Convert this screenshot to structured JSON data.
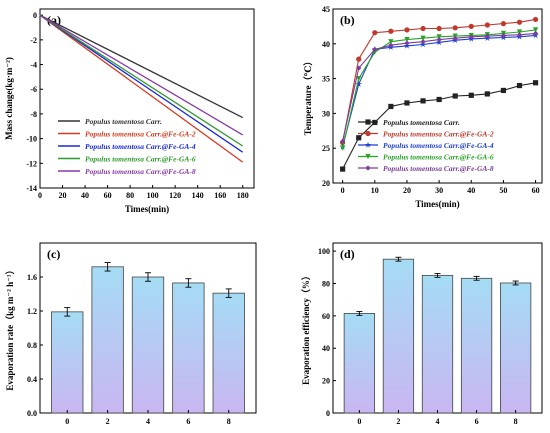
{
  "chart_data": [
    {
      "panel": "(a)",
      "type": "line",
      "xlabel": "Times(min)",
      "ylabel": "Mass change(kg·m⁻²)",
      "xlim": [
        0,
        190
      ],
      "ylim": [
        -14,
        0.5
      ],
      "xticks": [
        0,
        20,
        40,
        60,
        80,
        100,
        120,
        140,
        160,
        180
      ],
      "yticks": [
        0,
        -2,
        -4,
        -6,
        -8,
        -10,
        -12,
        -14
      ],
      "legend_position": "center-right",
      "series": [
        {
          "name": "Populus tomentosa Carr.",
          "color": "#333333",
          "x": [
            0,
            180
          ],
          "y": [
            0,
            -8.3
          ]
        },
        {
          "name": "Populus tomentosa Carr.@Fe-GA-2",
          "color": "#d63a1f",
          "x": [
            0,
            180
          ],
          "y": [
            0,
            -11.9
          ]
        },
        {
          "name": "Populus tomentosa Carr.@Fe-GA-4",
          "color": "#1a2ad6",
          "x": [
            0,
            180
          ],
          "y": [
            0,
            -11.1
          ]
        },
        {
          "name": "Populus tomentosa Carr.@Fe-GA-6",
          "color": "#2e9a2e",
          "x": [
            0,
            180
          ],
          "y": [
            0,
            -10.6
          ]
        },
        {
          "name": "Populus tomentosa Carr.@Fe-GA-8",
          "color": "#8a3aa8",
          "x": [
            0,
            180
          ],
          "y": [
            0,
            -9.7
          ]
        }
      ]
    },
    {
      "panel": "(b)",
      "type": "line",
      "xlabel": "Times(min)",
      "ylabel": "Temperature（℃）",
      "xlim": [
        -3,
        62
      ],
      "ylim": [
        20,
        45
      ],
      "xticks": [
        0,
        10,
        20,
        30,
        40,
        50,
        60
      ],
      "yticks": [
        20,
        25,
        30,
        35,
        40,
        45
      ],
      "legend_position": "bottom-right",
      "series": [
        {
          "name": "Populus tomentosa Carr.",
          "color": "#222222",
          "marker": "square",
          "x": [
            0,
            5,
            10,
            15,
            20,
            25,
            30,
            35,
            40,
            45,
            50,
            55,
            60
          ],
          "y": [
            22.0,
            26.5,
            28.7,
            31.0,
            31.5,
            31.8,
            32.0,
            32.5,
            32.6,
            32.8,
            33.3,
            34.0,
            34.4
          ]
        },
        {
          "name": "Populus tomentosa Carr.@Fe-GA-2",
          "color": "#c0392b",
          "marker": "circle",
          "x": [
            0,
            5,
            10,
            15,
            20,
            25,
            30,
            35,
            40,
            45,
            50,
            55,
            60
          ],
          "y": [
            25.8,
            37.8,
            41.6,
            41.8,
            42.0,
            42.2,
            42.2,
            42.3,
            42.5,
            42.7,
            42.9,
            43.1,
            43.5
          ]
        },
        {
          "name": "Populus tomentosa Carr.@Fe-GA-4",
          "color": "#1f3fcf",
          "marker": "star",
          "x": [
            0,
            5,
            10,
            15,
            20,
            25,
            30,
            35,
            40,
            45,
            50,
            55,
            60
          ],
          "y": [
            25.2,
            34.2,
            39.2,
            39.5,
            39.7,
            39.9,
            40.2,
            40.5,
            40.7,
            40.8,
            40.9,
            41.0,
            41.2
          ]
        },
        {
          "name": "Populus tomentosa Carr.@Fe-GA-6",
          "color": "#27a327",
          "marker": "triangle-down",
          "x": [
            0,
            5,
            10,
            15,
            20,
            25,
            30,
            35,
            40,
            45,
            50,
            55,
            60
          ],
          "y": [
            25.0,
            35.0,
            38.8,
            40.3,
            40.6,
            40.8,
            41.0,
            41.1,
            41.2,
            41.3,
            41.5,
            41.7,
            42.0
          ]
        },
        {
          "name": "Populus tomentosa Carr.@Fe-GA-8",
          "color": "#7d3c98",
          "marker": "diamond",
          "x": [
            0,
            5,
            10,
            15,
            20,
            25,
            30,
            35,
            40,
            45,
            50,
            55,
            60
          ],
          "y": [
            26.0,
            36.5,
            39.2,
            39.8,
            40.1,
            40.3,
            40.6,
            40.8,
            41.0,
            41.1,
            41.2,
            41.3,
            41.5
          ]
        }
      ]
    },
    {
      "panel": "(c)",
      "type": "bar",
      "xlabel": "",
      "ylabel": "Evaporation rate（kg m⁻² h⁻¹）",
      "categories": [
        "0",
        "2",
        "4",
        "6",
        "8"
      ],
      "values": [
        1.19,
        1.72,
        1.6,
        1.53,
        1.41
      ],
      "errors": [
        0.05,
        0.05,
        0.05,
        0.05,
        0.05
      ],
      "ylim": [
        0,
        2.0
      ],
      "yticks": [
        0.0,
        0.4,
        0.8,
        1.2,
        1.6
      ],
      "bar_gradient": [
        "#c9b6f2",
        "#a5dcf4"
      ]
    },
    {
      "panel": "(d)",
      "type": "bar",
      "xlabel": "",
      "ylabel": "Evaporation efficiency（%）",
      "categories": [
        "0",
        "2",
        "4",
        "6",
        "8"
      ],
      "values": [
        61.5,
        95.0,
        85.0,
        83.2,
        80.3
      ],
      "errors": [
        1.2,
        1.2,
        1.2,
        1.2,
        1.2
      ],
      "ylim": [
        0,
        105
      ],
      "yticks": [
        0,
        20,
        40,
        60,
        80,
        100
      ],
      "bar_gradient": [
        "#c9b6f2",
        "#a5dcf4"
      ]
    }
  ]
}
